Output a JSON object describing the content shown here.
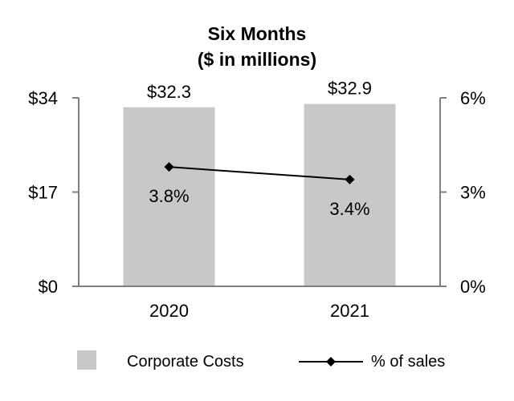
{
  "chart_data": {
    "type": "bar",
    "title": "Six Months",
    "subtitle": "($ in millions)",
    "categories": [
      "2020",
      "2021"
    ],
    "series": [
      {
        "name": "Corporate Costs",
        "type": "bar",
        "axis": "left",
        "values": [
          32.3,
          32.9
        ],
        "labels": [
          "$32.3",
          "$32.9"
        ],
        "color": "#c8c8c8"
      },
      {
        "name": "% of sales",
        "type": "line",
        "axis": "right",
        "values": [
          3.8,
          3.4
        ],
        "labels": [
          "3.8%",
          "3.4%"
        ],
        "color": "#000000"
      }
    ],
    "y_left": {
      "ylim": [
        0,
        34
      ],
      "ticks": [
        0,
        17,
        34
      ],
      "tick_labels": [
        "$0",
        "$17",
        "$34"
      ]
    },
    "y_right": {
      "ylim": [
        0,
        6
      ],
      "ticks": [
        0,
        3,
        6
      ],
      "tick_labels": [
        "0%",
        "3%",
        "6%"
      ]
    },
    "xlabel": "",
    "ylabel": "",
    "grid": false,
    "legend": "bottom",
    "axis_color": "#808080"
  }
}
